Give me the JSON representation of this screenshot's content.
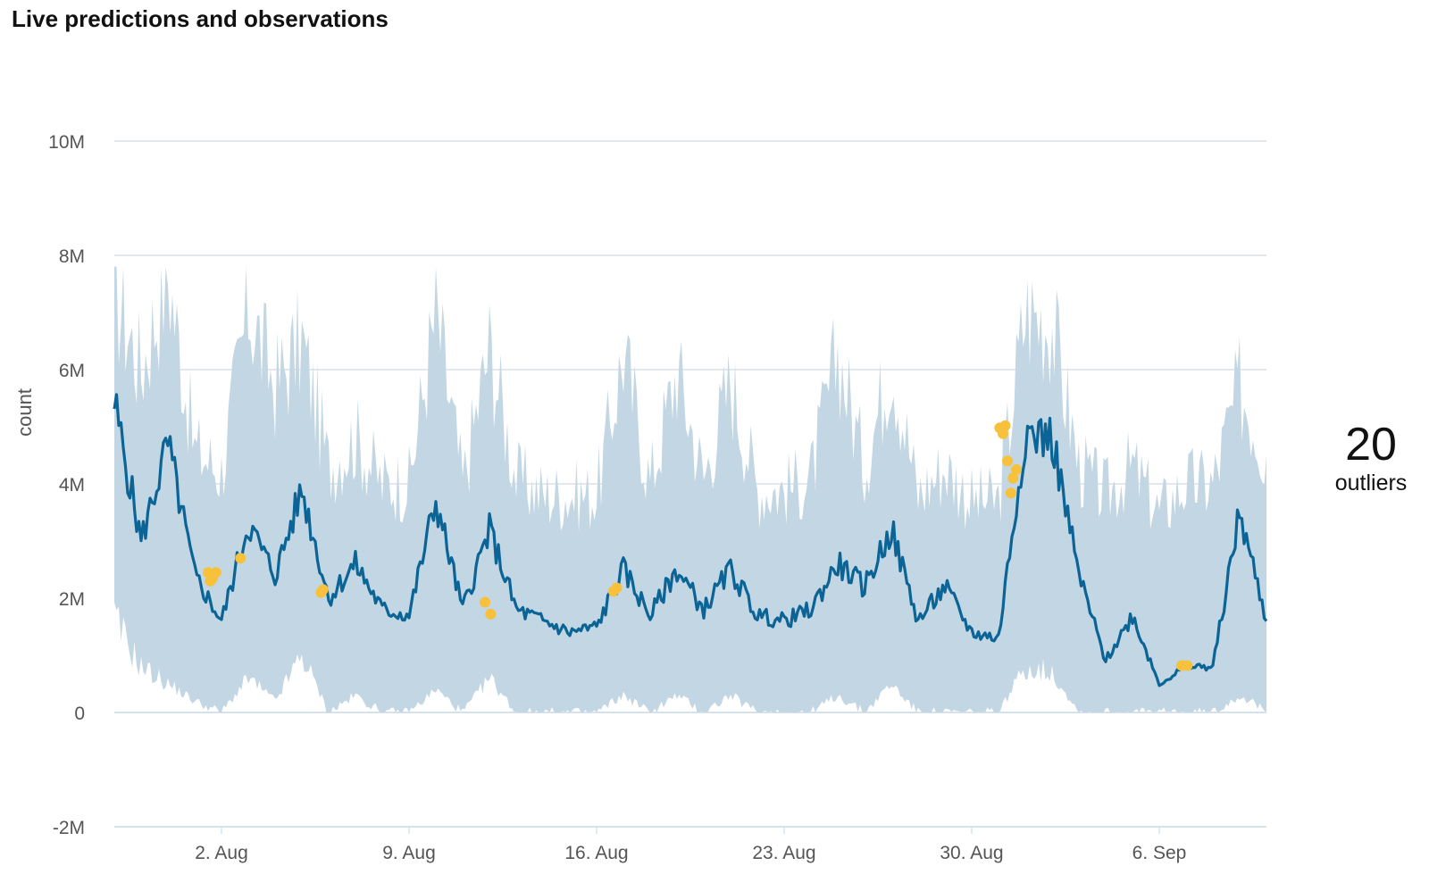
{
  "title": "Live predictions and observations",
  "outliers": {
    "count": "20",
    "label": "outliers"
  },
  "colors": {
    "band": "#c3d6e3",
    "line": "#0b6496",
    "outlier": "#f7c13b",
    "grid": "#d3dbe2",
    "zero_axis": "#d5e2ee",
    "text": "#555555"
  },
  "chart_data": {
    "type": "line",
    "title": "Live predictions and observations",
    "ylabel": "count",
    "xlabel": "",
    "ylim": [
      -2000000,
      10000000
    ],
    "yticks": [
      {
        "value": 10000000,
        "label": "10M"
      },
      {
        "value": 8000000,
        "label": "8M"
      },
      {
        "value": 6000000,
        "label": "6M"
      },
      {
        "value": 4000000,
        "label": "4M"
      },
      {
        "value": 2000000,
        "label": "2M"
      },
      {
        "value": 0,
        "label": "0"
      },
      {
        "value": -2000000,
        "label": "-2M"
      }
    ],
    "xlim": [
      "2021-07-29",
      "2021-09-10"
    ],
    "xticks": [
      {
        "value": "2021-08-02",
        "label": "2. Aug"
      },
      {
        "value": "2021-08-09",
        "label": "9. Aug"
      },
      {
        "value": "2021-08-16",
        "label": "16. Aug"
      },
      {
        "value": "2021-08-23",
        "label": "23. Aug"
      },
      {
        "value": "2021-08-30",
        "label": "30. Aug"
      },
      {
        "value": "2021-09-06",
        "label": "6. Sep"
      }
    ],
    "grid": true,
    "series": [
      {
        "type": "line",
        "x": [
          "2021-07-29",
          "2021-07-30",
          "2021-07-31",
          "2021-08-01",
          "2021-08-02",
          "2021-08-03",
          "2021-08-04",
          "2021-08-05",
          "2021-08-06",
          "2021-08-07",
          "2021-08-08",
          "2021-08-09",
          "2021-08-10",
          "2021-08-11",
          "2021-08-12",
          "2021-08-13",
          "2021-08-14",
          "2021-08-15",
          "2021-08-16",
          "2021-08-17",
          "2021-08-18",
          "2021-08-19",
          "2021-08-20",
          "2021-08-21",
          "2021-08-22",
          "2021-08-23",
          "2021-08-24",
          "2021-08-25",
          "2021-08-26",
          "2021-08-27",
          "2021-08-28",
          "2021-08-29",
          "2021-08-30",
          "2021-08-31",
          "2021-09-01",
          "2021-09-02",
          "2021-09-03",
          "2021-09-04",
          "2021-09-05",
          "2021-09-06",
          "2021-09-07",
          "2021-09-08",
          "2021-09-09",
          "2021-09-10"
        ],
        "values": [
          5400000,
          3000000,
          4700000,
          2400000,
          1600000,
          3300000,
          2400000,
          3900000,
          2000000,
          2600000,
          1800000,
          1700000,
          3700000,
          1800000,
          3200000,
          1800000,
          1600000,
          1400000,
          1500000,
          2500000,
          1700000,
          2500000,
          1800000,
          2500000,
          1700000,
          1600000,
          1800000,
          2600000,
          2200000,
          3200000,
          1600000,
          2200000,
          1400000,
          1300000,
          4900000,
          4800000,
          2400000,
          900000,
          1700000,
          500000,
          800000,
          800000,
          3500000,
          1600000
        ]
      }
    ],
    "band": {
      "name": "",
      "x": [
        "2021-07-29",
        "2021-07-30",
        "2021-07-31",
        "2021-08-01",
        "2021-08-02",
        "2021-08-03",
        "2021-08-04",
        "2021-08-05",
        "2021-08-06",
        "2021-08-07",
        "2021-08-08",
        "2021-08-09",
        "2021-08-10",
        "2021-08-11",
        "2021-08-12",
        "2021-08-13",
        "2021-08-14",
        "2021-08-15",
        "2021-08-16",
        "2021-08-17",
        "2021-08-18",
        "2021-08-19",
        "2021-08-20",
        "2021-08-21",
        "2021-08-22",
        "2021-08-23",
        "2021-08-24",
        "2021-08-25",
        "2021-08-26",
        "2021-08-27",
        "2021-08-28",
        "2021-08-29",
        "2021-08-30",
        "2021-08-31",
        "2021-09-01",
        "2021-09-02",
        "2021-09-03",
        "2021-09-04",
        "2021-09-05",
        "2021-09-06",
        "2021-09-07",
        "2021-09-08",
        "2021-09-09",
        "2021-09-10"
      ],
      "lower": [
        1600000,
        800000,
        500000,
        200000,
        0,
        600000,
        200000,
        1000000,
        0,
        300000,
        0,
        0,
        400000,
        0,
        600000,
        0,
        0,
        0,
        0,
        300000,
        0,
        300000,
        0,
        300000,
        0,
        0,
        0,
        300000,
        0,
        500000,
        0,
        0,
        0,
        0,
        800000,
        700000,
        0,
        0,
        0,
        0,
        0,
        0,
        300000,
        0
      ],
      "upper": [
        7400000,
        6000000,
        7700000,
        4600000,
        4200000,
        7100000,
        5700000,
        6500000,
        4300000,
        4800000,
        4000000,
        4000000,
        7000000,
        4000000,
        6400000,
        4100000,
        3800000,
        3800000,
        3800000,
        6300000,
        4000000,
        6000000,
        4100000,
        5800000,
        3900000,
        3900000,
        4100000,
        6300000,
        4300000,
        6200000,
        3800000,
        4300000,
        3700000,
        3700000,
        7000000,
        6800000,
        4300000,
        3800000,
        4300000,
        3500000,
        4000000,
        4000000,
        5700000,
        4500000
      ]
    },
    "outliers": [
      {
        "x": "2021-08-01T12:00",
        "y": 2450000
      },
      {
        "x": "2021-08-01T14:00",
        "y": 2300000
      },
      {
        "x": "2021-08-01T16:00",
        "y": 2350000
      },
      {
        "x": "2021-08-01T19:00",
        "y": 2450000
      },
      {
        "x": "2021-08-02T17:00",
        "y": 2700000
      },
      {
        "x": "2021-08-05T17:00",
        "y": 2100000
      },
      {
        "x": "2021-08-05T19:00",
        "y": 2150000
      },
      {
        "x": "2021-08-11T20:00",
        "y": 1930000
      },
      {
        "x": "2021-08-12T01:00",
        "y": 1720000
      },
      {
        "x": "2021-08-16T15:00",
        "y": 2120000
      },
      {
        "x": "2021-08-16T18:00",
        "y": 2180000
      },
      {
        "x": "2021-08-31T01:00",
        "y": 4980000
      },
      {
        "x": "2021-08-31T04:00",
        "y": 4880000
      },
      {
        "x": "2021-08-31T06:00",
        "y": 5020000
      },
      {
        "x": "2021-08-31T08:00",
        "y": 4400000
      },
      {
        "x": "2021-08-31T11:00",
        "y": 3840000
      },
      {
        "x": "2021-08-31T13:00",
        "y": 4100000
      },
      {
        "x": "2021-08-31T16:00",
        "y": 4250000
      },
      {
        "x": "2021-09-06T20:00",
        "y": 820000
      },
      {
        "x": "2021-09-07T01:00",
        "y": 820000
      }
    ]
  }
}
